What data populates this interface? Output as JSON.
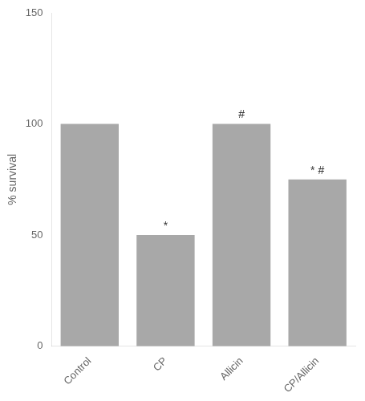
{
  "chart_data": {
    "type": "bar",
    "categories": [
      "Control",
      "CP",
      "Allicin",
      "CP/Allicin"
    ],
    "values": [
      100,
      50,
      100,
      75
    ],
    "color": "#a8a8a8",
    "ylabel": "% survival",
    "ylim": [
      0,
      150
    ],
    "yticks": [
      0,
      50,
      100,
      150
    ],
    "grid": false,
    "annotations": [
      {
        "text": "*",
        "category": "CP"
      },
      {
        "text": "#",
        "category": "Allicin"
      },
      {
        "text": "* #",
        "category": "CP/Allicin"
      }
    ]
  }
}
